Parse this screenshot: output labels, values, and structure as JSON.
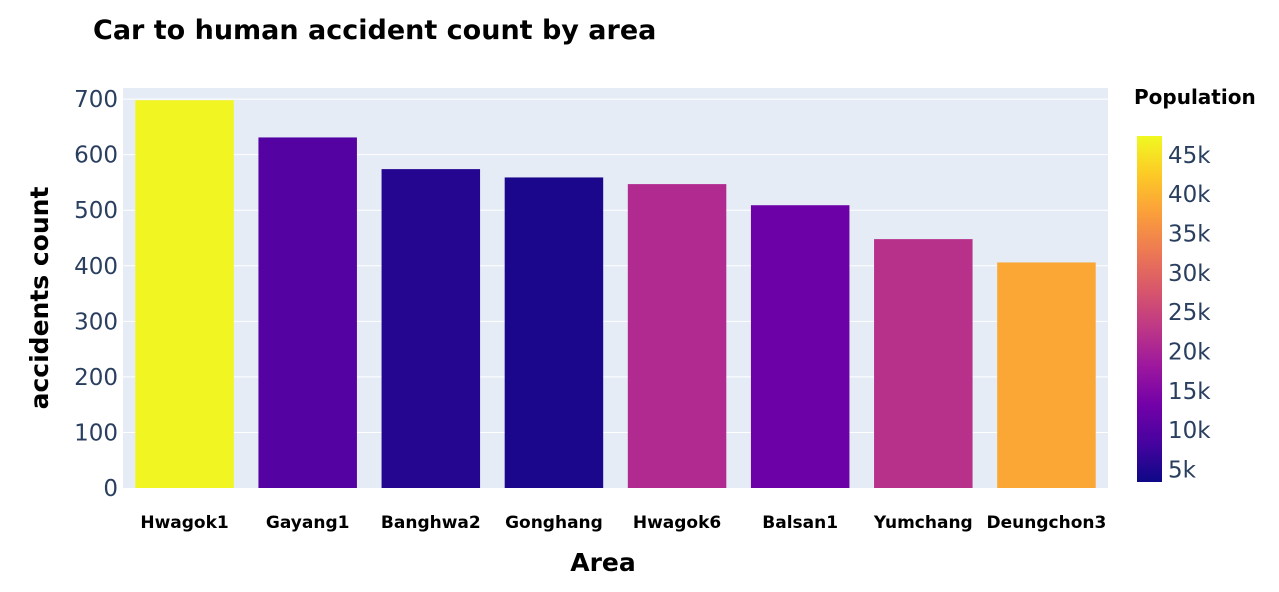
{
  "chart_data": {
    "type": "bar",
    "title": "Car to human accident count by area",
    "xlabel": "Area",
    "ylabel": "accidents count",
    "categories": [
      "Hwagok1",
      "Gayang1",
      "Banghwa2",
      "Gonghang",
      "Hwagok6",
      "Balsan1",
      "Yumchang",
      "Deungchon3"
    ],
    "values": [
      698,
      631,
      574,
      559,
      547,
      509,
      448,
      406
    ],
    "color_values": [
      47000,
      10000,
      5500,
      4500,
      21000,
      12500,
      22000,
      38500
    ],
    "ylim": [
      0,
      720
    ],
    "yticks": [
      0,
      100,
      200,
      300,
      400,
      500,
      600,
      700
    ],
    "grid": true,
    "colorbar": {
      "title": "Population",
      "range": [
        3400,
        47400
      ],
      "ticks": [
        5000,
        10000,
        15000,
        20000,
        25000,
        30000,
        35000,
        40000,
        45000
      ],
      "tick_labels": [
        "5k",
        "10k",
        "15k",
        "20k",
        "25k",
        "30k",
        "35k",
        "40k",
        "45k"
      ],
      "colorscale": [
        "#0d0887",
        "#46039f",
        "#7201a8",
        "#9c179e",
        "#bd3786",
        "#d8576b",
        "#ed7953",
        "#fb9f3a",
        "#fdca26",
        "#f0f921"
      ]
    },
    "plot_bg": "#e5ecf6",
    "grid_color": "#ffffff"
  }
}
